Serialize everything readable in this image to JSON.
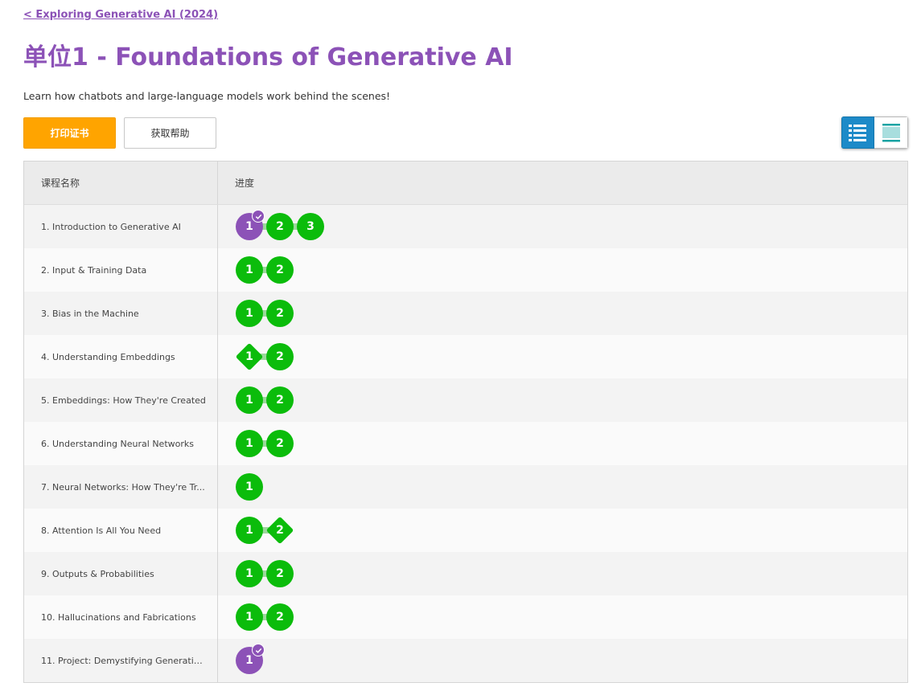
{
  "breadcrumb": {
    "back_label": "< Exploring Generative AI (2024)"
  },
  "header": {
    "title": "单位1 - Foundations of Generative AI",
    "description": "Learn how chatbots and large-language models work behind the scenes!"
  },
  "toolbar": {
    "print_label": "打印证书",
    "help_label": "获取帮助",
    "view_list_icon": "list-view-icon",
    "view_detail_icon": "detail-view-icon"
  },
  "colors": {
    "accent": "#8c52b7",
    "print_button": "#ffa400",
    "complete": "#0bbc0b",
    "list_view_active": "#1d8ac8",
    "detail_view_icon": "#17a3a3"
  },
  "table": {
    "headers": {
      "name": "课程名称",
      "progress": "进度"
    },
    "rows": [
      {
        "name": "1. Introduction to Generative AI",
        "levels": [
          {
            "label": "1",
            "shape": "circle",
            "status": "purple",
            "check": true
          },
          {
            "label": "2",
            "shape": "circle",
            "status": "green"
          },
          {
            "label": "3",
            "shape": "circle",
            "status": "green"
          }
        ]
      },
      {
        "name": "2. Input & Training Data",
        "levels": [
          {
            "label": "1",
            "shape": "circle",
            "status": "green"
          },
          {
            "label": "2",
            "shape": "circle",
            "status": "green"
          }
        ]
      },
      {
        "name": "3. Bias in the Machine",
        "levels": [
          {
            "label": "1",
            "shape": "circle",
            "status": "green"
          },
          {
            "label": "2",
            "shape": "circle",
            "status": "green"
          }
        ]
      },
      {
        "name": "4. Understanding Embeddings",
        "levels": [
          {
            "label": "1",
            "shape": "diamond",
            "status": "green"
          },
          {
            "label": "2",
            "shape": "circle",
            "status": "green"
          }
        ]
      },
      {
        "name": "5. Embeddings: How They're Created",
        "levels": [
          {
            "label": "1",
            "shape": "circle",
            "status": "green"
          },
          {
            "label": "2",
            "shape": "circle",
            "status": "green"
          }
        ]
      },
      {
        "name": "6. Understanding Neural Networks",
        "levels": [
          {
            "label": "1",
            "shape": "circle",
            "status": "green"
          },
          {
            "label": "2",
            "shape": "circle",
            "status": "green"
          }
        ]
      },
      {
        "name": "7. Neural Networks: How They're Tr...",
        "levels": [
          {
            "label": "1",
            "shape": "circle",
            "status": "green"
          }
        ]
      },
      {
        "name": "8. Attention Is All You Need",
        "levels": [
          {
            "label": "1",
            "shape": "circle",
            "status": "green"
          },
          {
            "label": "2",
            "shape": "diamond",
            "status": "green"
          }
        ]
      },
      {
        "name": "9. Outputs & Probabilities",
        "levels": [
          {
            "label": "1",
            "shape": "circle",
            "status": "green"
          },
          {
            "label": "2",
            "shape": "circle",
            "status": "green"
          }
        ]
      },
      {
        "name": "10. Hallucinations and Fabrications",
        "levels": [
          {
            "label": "1",
            "shape": "circle",
            "status": "green"
          },
          {
            "label": "2",
            "shape": "circle",
            "status": "green"
          }
        ]
      },
      {
        "name": "11. Project: Demystifying Generativ...",
        "levels": [
          {
            "label": "1",
            "shape": "circle",
            "status": "purple",
            "check": true
          }
        ]
      }
    ]
  }
}
